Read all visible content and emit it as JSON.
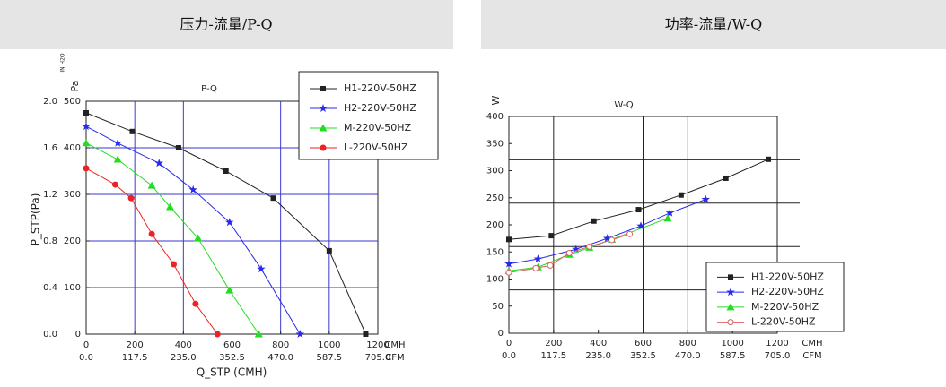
{
  "chart_data": [
    {
      "type": "line",
      "panel_title": "压力-流量/P-Q",
      "title": "P-Q",
      "x_label": "Q_STP (CMH)",
      "y_label": "P_STP(Pa)",
      "y_unit": "Pa",
      "y2_unit": "IN H2O",
      "x_unit": "CMH",
      "x2_unit": "CFM",
      "xlim": [
        0,
        1200
      ],
      "xticks": [
        0,
        200,
        400,
        600,
        800,
        1000,
        1200
      ],
      "x2lim": [
        0,
        705
      ],
      "x2ticks": [
        {
          "value": 0,
          "label": "0.0"
        },
        117.5,
        {
          "value": 235,
          "label": "235.0"
        },
        352.5,
        {
          "value": 470,
          "label": "470.0"
        },
        587.5,
        {
          "value": 705,
          "label": "705.0"
        }
      ],
      "ylim": [
        0,
        500
      ],
      "yticks": [
        0,
        100,
        200,
        300,
        400,
        500
      ],
      "y2lim": [
        0,
        2
      ],
      "y2ticks": [
        {
          "value": 0,
          "label": "0.0"
        },
        0.4,
        0.8,
        1.2,
        1.6,
        {
          "value": 2,
          "label": "2.0"
        }
      ],
      "grid": true,
      "grid_color": "#3a3acc",
      "xgrid": [
        200,
        400,
        600,
        800,
        1000
      ],
      "ygrid": [
        100,
        200,
        300,
        400
      ],
      "legend": "upper right",
      "series": [
        {
          "name": "H1-220V-50HZ",
          "color": "#222222",
          "marker": "square",
          "x": [
            0,
            190,
            380,
            575,
            770,
            1000,
            1150
          ],
          "values": [
            475,
            435,
            400,
            350,
            292,
            179,
            0
          ]
        },
        {
          "name": "H2-220V-50HZ",
          "color": "#2a2aee",
          "marker": "star",
          "x": [
            0,
            130,
            300,
            440,
            590,
            720,
            880
          ],
          "values": [
            446,
            410,
            367,
            310,
            240,
            140,
            0
          ]
        },
        {
          "name": "M-220V-50HZ",
          "color": "#22dd22",
          "marker": "triangle",
          "x": [
            0,
            130,
            270,
            345,
            460,
            590,
            710
          ],
          "values": [
            410,
            375,
            319,
            273,
            206,
            94,
            0
          ]
        },
        {
          "name": "L-220V-50HZ",
          "color": "#ee2222",
          "marker": "circle",
          "x": [
            0,
            120,
            185,
            270,
            360,
            450,
            540
          ],
          "values": [
            356,
            321,
            292,
            215,
            150,
            65,
            0
          ]
        }
      ]
    },
    {
      "type": "line",
      "panel_title": "功率-流量/W-Q",
      "title": "W-Q",
      "y_unit": "W",
      "x_unit": "CMH",
      "x2_unit": "CFM",
      "xlim": [
        0,
        1200
      ],
      "xticks": [
        0,
        200,
        400,
        600,
        800,
        1000,
        1200
      ],
      "x2lim": [
        0,
        705
      ],
      "x2ticks": [
        {
          "value": 0,
          "label": "0.0"
        },
        117.5,
        {
          "value": 235,
          "label": "235.0"
        },
        352.5,
        {
          "value": 470,
          "label": "470.0"
        },
        587.5,
        {
          "value": 705,
          "label": "705.0"
        }
      ],
      "ylim": [
        0,
        400
      ],
      "yticks": [
        0,
        50,
        100,
        150,
        200,
        250,
        300,
        350,
        400
      ],
      "grid": true,
      "grid_color": "#222222",
      "xgrid": [
        200,
        600,
        800,
        1200
      ],
      "ygrid": [
        80,
        160,
        240,
        320
      ],
      "legend": "lower right",
      "series": [
        {
          "name": "H1-220V-50HZ",
          "color": "#222222",
          "marker": "square",
          "x": [
            0,
            190,
            380,
            580,
            770,
            970,
            1160
          ],
          "values": [
            173,
            180,
            207,
            228,
            255,
            286,
            321
          ]
        },
        {
          "name": "H2-220V-50HZ",
          "color": "#2a2aee",
          "marker": "star",
          "x": [
            0,
            130,
            300,
            440,
            590,
            720,
            880
          ],
          "values": [
            128,
            137,
            155,
            175,
            198,
            222,
            247
          ]
        },
        {
          "name": "M-220V-50HZ",
          "color": "#22dd22",
          "marker": "triangle",
          "x": [
            0,
            130,
            270,
            360,
            460,
            710
          ],
          "values": [
            115,
            122,
            145,
            158,
            173,
            212
          ]
        },
        {
          "name": "L-220V-50HZ",
          "color": "#e06060",
          "marker": "open-circle",
          "x": [
            0,
            120,
            185,
            270,
            360,
            460,
            540
          ],
          "values": [
            112,
            120,
            125,
            148,
            160,
            172,
            183
          ]
        }
      ]
    }
  ]
}
